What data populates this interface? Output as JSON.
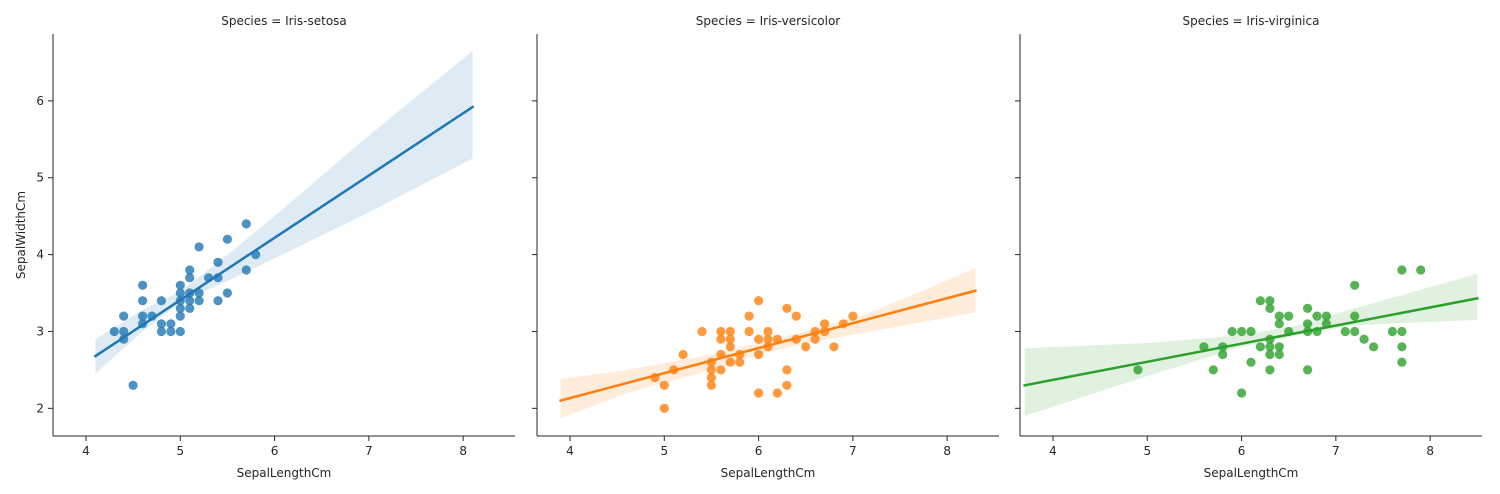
{
  "chart_data": {
    "type": "scatter",
    "xlabel": "SepalLengthCm",
    "ylabel": "SepalWidthCm",
    "xlim": [
      3.65,
      8.55
    ],
    "ylim": [
      1.64,
      6.87
    ],
    "xticks": [
      "4",
      "5",
      "6",
      "7",
      "8"
    ],
    "yticks": [
      "2",
      "3",
      "4",
      "5",
      "6"
    ],
    "sharey": true,
    "facets": [
      {
        "title": "Species = Iris-setosa",
        "color": "#1f77b4",
        "fit": {
          "x0": 4.1,
          "x1": 8.1,
          "y0": 2.68,
          "y1": 5.92
        },
        "band": [
          [
            4.1,
            2.45,
            2.9
          ],
          [
            4.6,
            3.0,
            3.28
          ],
          [
            5.0,
            3.38,
            3.52
          ],
          [
            5.4,
            3.6,
            3.9
          ],
          [
            6.0,
            3.95,
            4.5
          ],
          [
            7.0,
            4.55,
            5.55
          ],
          [
            8.1,
            5.25,
            6.65
          ]
        ],
        "points": [
          [
            4.3,
            3.0
          ],
          [
            4.4,
            2.9
          ],
          [
            4.4,
            3.0
          ],
          [
            4.4,
            3.2
          ],
          [
            4.5,
            2.3
          ],
          [
            4.6,
            3.1
          ],
          [
            4.6,
            3.2
          ],
          [
            4.6,
            3.4
          ],
          [
            4.6,
            3.6
          ],
          [
            4.7,
            3.2
          ],
          [
            4.8,
            3.0
          ],
          [
            4.8,
            3.1
          ],
          [
            4.8,
            3.4
          ],
          [
            4.9,
            3.0
          ],
          [
            4.9,
            3.1
          ],
          [
            5.0,
            3.0
          ],
          [
            5.0,
            3.2
          ],
          [
            5.0,
            3.3
          ],
          [
            5.0,
            3.4
          ],
          [
            5.0,
            3.5
          ],
          [
            5.0,
            3.6
          ],
          [
            5.1,
            3.3
          ],
          [
            5.1,
            3.4
          ],
          [
            5.1,
            3.5
          ],
          [
            5.1,
            3.7
          ],
          [
            5.1,
            3.8
          ],
          [
            5.2,
            3.4
          ],
          [
            5.2,
            3.5
          ],
          [
            5.2,
            4.1
          ],
          [
            5.3,
            3.7
          ],
          [
            5.4,
            3.4
          ],
          [
            5.4,
            3.7
          ],
          [
            5.4,
            3.9
          ],
          [
            5.5,
            3.5
          ],
          [
            5.5,
            4.2
          ],
          [
            5.7,
            3.8
          ],
          [
            5.7,
            4.4
          ],
          [
            5.8,
            4.0
          ]
        ]
      },
      {
        "title": "Species = Iris-versicolor",
        "color": "#ff7f0e",
        "fit": {
          "x0": 3.9,
          "x1": 8.3,
          "y0": 2.1,
          "y1": 3.53
        },
        "band": [
          [
            3.9,
            1.87,
            2.38
          ],
          [
            4.6,
            2.2,
            2.5
          ],
          [
            5.5,
            2.5,
            2.7
          ],
          [
            6.0,
            2.7,
            2.85
          ],
          [
            6.5,
            2.85,
            3.0
          ],
          [
            7.2,
            3.0,
            3.25
          ],
          [
            8.3,
            3.25,
            3.82
          ]
        ],
        "points": [
          [
            4.9,
            2.4
          ],
          [
            5.0,
            2.0
          ],
          [
            5.0,
            2.3
          ],
          [
            5.1,
            2.5
          ],
          [
            5.2,
            2.7
          ],
          [
            5.4,
            3.0
          ],
          [
            5.5,
            2.3
          ],
          [
            5.5,
            2.4
          ],
          [
            5.5,
            2.5
          ],
          [
            5.5,
            2.6
          ],
          [
            5.6,
            2.5
          ],
          [
            5.6,
            2.7
          ],
          [
            5.6,
            2.9
          ],
          [
            5.6,
            3.0
          ],
          [
            5.7,
            2.6
          ],
          [
            5.7,
            2.8
          ],
          [
            5.7,
            2.9
          ],
          [
            5.7,
            3.0
          ],
          [
            5.8,
            2.6
          ],
          [
            5.8,
            2.7
          ],
          [
            5.9,
            3.0
          ],
          [
            5.9,
            3.2
          ],
          [
            6.0,
            2.2
          ],
          [
            6.0,
            2.7
          ],
          [
            6.0,
            2.9
          ],
          [
            6.0,
            3.4
          ],
          [
            6.1,
            2.8
          ],
          [
            6.1,
            2.9
          ],
          [
            6.1,
            3.0
          ],
          [
            6.2,
            2.2
          ],
          [
            6.2,
            2.9
          ],
          [
            6.3,
            2.3
          ],
          [
            6.3,
            2.5
          ],
          [
            6.3,
            3.3
          ],
          [
            6.4,
            2.9
          ],
          [
            6.4,
            3.2
          ],
          [
            6.5,
            2.8
          ],
          [
            6.6,
            2.9
          ],
          [
            6.6,
            3.0
          ],
          [
            6.7,
            3.0
          ],
          [
            6.7,
            3.1
          ],
          [
            6.8,
            2.8
          ],
          [
            6.9,
            3.1
          ],
          [
            7.0,
            3.2
          ]
        ]
      },
      {
        "title": "Species = Iris-virginica",
        "color": "#2ca02c",
        "fit": {
          "x0": 3.7,
          "x1": 8.5,
          "y0": 2.3,
          "y1": 3.43
        },
        "band": [
          [
            3.7,
            1.9,
            2.78
          ],
          [
            5.0,
            2.42,
            2.85
          ],
          [
            6.0,
            2.8,
            2.95
          ],
          [
            6.6,
            2.95,
            3.08
          ],
          [
            7.2,
            3.08,
            3.3
          ],
          [
            8.5,
            3.15,
            3.75
          ]
        ],
        "points": [
          [
            4.9,
            2.5
          ],
          [
            5.6,
            2.8
          ],
          [
            5.7,
            2.5
          ],
          [
            5.8,
            2.7
          ],
          [
            5.8,
            2.8
          ],
          [
            5.9,
            3.0
          ],
          [
            6.0,
            2.2
          ],
          [
            6.0,
            3.0
          ],
          [
            6.1,
            2.6
          ],
          [
            6.1,
            3.0
          ],
          [
            6.2,
            2.8
          ],
          [
            6.2,
            3.4
          ],
          [
            6.3,
            2.5
          ],
          [
            6.3,
            2.7
          ],
          [
            6.3,
            2.8
          ],
          [
            6.3,
            2.9
          ],
          [
            6.3,
            3.3
          ],
          [
            6.3,
            3.4
          ],
          [
            6.4,
            2.7
          ],
          [
            6.4,
            2.8
          ],
          [
            6.4,
            3.1
          ],
          [
            6.4,
            3.2
          ],
          [
            6.5,
            3.0
          ],
          [
            6.5,
            3.2
          ],
          [
            6.7,
            2.5
          ],
          [
            6.7,
            3.0
          ],
          [
            6.7,
            3.1
          ],
          [
            6.7,
            3.3
          ],
          [
            6.8,
            3.0
          ],
          [
            6.8,
            3.2
          ],
          [
            6.9,
            3.1
          ],
          [
            6.9,
            3.2
          ],
          [
            7.1,
            3.0
          ],
          [
            7.2,
            3.0
          ],
          [
            7.2,
            3.2
          ],
          [
            7.2,
            3.6
          ],
          [
            7.3,
            2.9
          ],
          [
            7.4,
            2.8
          ],
          [
            7.6,
            3.0
          ],
          [
            7.7,
            2.6
          ],
          [
            7.7,
            2.8
          ],
          [
            7.7,
            3.0
          ],
          [
            7.7,
            3.8
          ],
          [
            7.9,
            3.8
          ]
        ]
      }
    ]
  }
}
